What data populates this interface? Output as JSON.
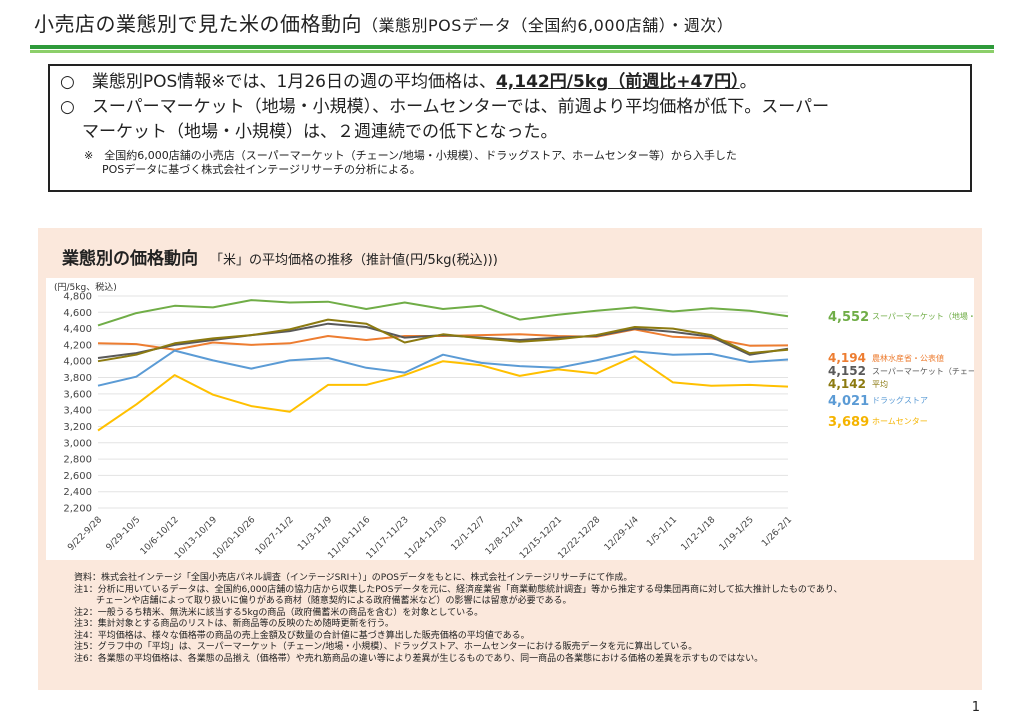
{
  "page": {
    "title": "小売店の業態別で見た米の価格動向",
    "title_sub": "（業態別POSデータ（全国約6,000店舗）・週次）",
    "page_number": "1"
  },
  "summary": {
    "bullet": "○",
    "line1_pre": "業態別POS情報※では、1月26日の週の平均価格は、",
    "line1_highlight": "4,142円/5kg（前週比+47円）",
    "line1_post": "。",
    "line2a": "スーパーマーケット（地場・小規模）、ホームセンターでは、前週より平均価格が低下。スーパー",
    "line2b": "マーケット（地場・小規模）は、２週連続での低下となった。",
    "note_mark": "※",
    "note_line1": "全国約6,000店舗の小売店（スーパーマーケット（チェーン/地場・小規模）、ドラッグストア、ホームセンター等）から入手した",
    "note_line2": "POSデータに基づく株式会社インテージリサーチの分析による。"
  },
  "panel": {
    "heading": "業態別の価格動向",
    "subheading": "「米」の平均価格の推移（推計値(円/5kg(税込)))"
  },
  "notes": [
    "資料：株式会社インテージ「全国小売店パネル調査（インテージSRI＋）」のPOSデータをもとに、株式会社インテージリサーチにて作成。",
    "注1：分析に用いているデータは、全国約6,000店舗の協力店から収集したPOSデータを元に、経済産業省「商業動態統計調査」等から推定する母集団再商に対して拡大推計したものであり、",
    "チェーンや店舗によって取り扱いに偏りがある商材（随意契約による政府備蓄米など）の影響には留意が必要である。",
    "注2：一般うるち精米、無洗米に該当する5kgの商品（政府備蓄米の商品を含む）を対象としている。",
    "注3：集計対象とする商品のリストは、新商品等の反映のため随時更新を行う。",
    "注4：平均価格は、様々な価格帯の商品の売上金額及び数量の合計値に基づき算出した販売価格の平均値である。",
    "注5：グラフ中の「平均」は、スーパーマーケット（チェーン/地場・小規模）、ドラッグストア、ホームセンターにおける販売データを元に算出している。",
    "注6：各業態の平均価格は、各業態の品揃え（価格帯）や売れ筋商品の違い等により差異が生じるものであり、同一商品の各業態における価格の差異を示すものではない。"
  ],
  "chart_data": {
    "type": "line",
    "ylabel": "(円/5kg、税込)",
    "ylim": [
      2200,
      4800
    ],
    "yticks": [
      2200,
      2400,
      2600,
      2800,
      3000,
      3200,
      3400,
      3600,
      3800,
      4000,
      4200,
      4400,
      4600,
      4800
    ],
    "ytick_labels": [
      "2,200",
      "2,400",
      "2,600",
      "2,800",
      "3,000",
      "3,200",
      "3,400",
      "3,600",
      "3,800",
      "4,000",
      "4,200",
      "4,400",
      "4,600",
      "4,800"
    ],
    "categories": [
      "9/22-9/28",
      "9/29-10/5",
      "10/6-10/12",
      "10/13-10/19",
      "10/20-10/26",
      "10/27-11/2",
      "11/3-11/9",
      "11/10-11/16",
      "11/17-11/23",
      "11/24-11/30",
      "12/1-12/7",
      "12/8-12/14",
      "12/15-12/21",
      "12/22-12/28",
      "12/29-1/4",
      "1/5-1/11",
      "1/12-1/18",
      "1/19-1/25",
      "1/26-2/1"
    ],
    "series": [
      {
        "name": "スーパーマーケット（地場・小規模）",
        "color": "#70ad47",
        "label_color": "#70ad47",
        "value_label": "4,552",
        "values": [
          4440,
          4590,
          4680,
          4660,
          4750,
          4720,
          4730,
          4640,
          4720,
          4640,
          4680,
          4510,
          4570,
          4620,
          4660,
          4610,
          4650,
          4620,
          4552
        ]
      },
      {
        "name": "農林水産省・公表値",
        "color": "#ed7d31",
        "label_color": "#ed7d31",
        "value_label": "4,194",
        "values": [
          4220,
          4210,
          4140,
          4230,
          4200,
          4220,
          4310,
          4260,
          4310,
          4310,
          4320,
          4330,
          4310,
          4300,
          4390,
          4300,
          4280,
          4190,
          4194
        ]
      },
      {
        "name": "スーパーマーケット（チェーン）",
        "color": "#595959",
        "label_color": "#595959",
        "value_label": "4,152",
        "values": [
          4040,
          4100,
          4200,
          4260,
          4320,
          4370,
          4460,
          4420,
          4290,
          4320,
          4290,
          4260,
          4290,
          4310,
          4400,
          4360,
          4300,
          4080,
          4152
        ]
      },
      {
        "name": "平均",
        "color": "#8c7a10",
        "label_color": "#8c7a10",
        "value_label": "4,142",
        "values": [
          4000,
          4080,
          4220,
          4280,
          4320,
          4390,
          4510,
          4460,
          4230,
          4330,
          4280,
          4240,
          4270,
          4320,
          4420,
          4400,
          4320,
          4100,
          4142
        ]
      },
      {
        "name": "ドラッグストア",
        "color": "#5b9bd5",
        "label_color": "#5b9bd5",
        "value_label": "4,021",
        "values": [
          3700,
          3810,
          4130,
          4010,
          3910,
          4010,
          4040,
          3920,
          3860,
          4080,
          3980,
          3940,
          3920,
          4010,
          4120,
          4080,
          4090,
          3990,
          4021
        ]
      },
      {
        "name": "ホームセンター",
        "color": "#ffc000",
        "label_color": "#f5b400",
        "value_label": "3,689",
        "values": [
          3150,
          3470,
          3830,
          3590,
          3450,
          3380,
          3710,
          3710,
          3830,
          4000,
          3950,
          3820,
          3900,
          3850,
          4060,
          3740,
          3700,
          3710,
          3689
        ]
      }
    ]
  }
}
